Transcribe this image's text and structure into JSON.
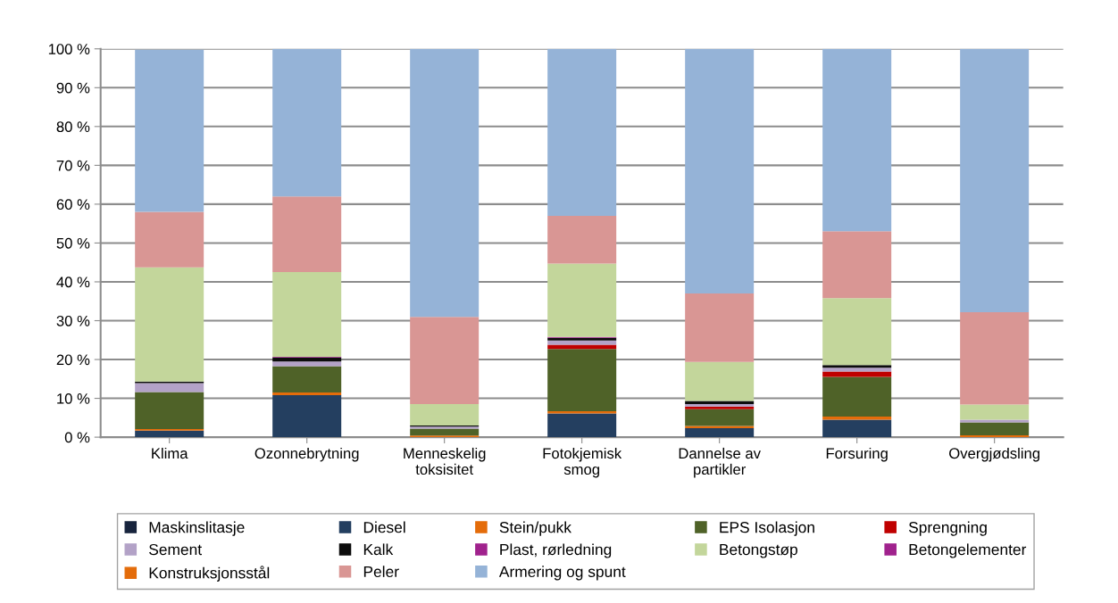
{
  "chart_data": {
    "type": "bar",
    "stacked": true,
    "categories": [
      "Klima",
      "Ozonnebrytning",
      "Menneskelig\ntoksisitet",
      "Fotokjemisk\nsmog",
      "Dannelse av\npartikler",
      "Forsuring",
      "Overgjødsling"
    ],
    "series": [
      {
        "name": "Maskinslitasje",
        "color": "#17243d",
        "values": [
          null,
          0,
          0,
          0,
          0,
          0,
          0
        ]
      },
      {
        "name": "Diesel",
        "color": "#243f60",
        "values": [
          1.7,
          10.8,
          0,
          6.1,
          2.3,
          4.5,
          0
        ]
      },
      {
        "name": "Stein/pukk",
        "color": "#e46c0a",
        "values": [
          0.4,
          0.7,
          0.4,
          0.6,
          0.6,
          0.8,
          0.5
        ]
      },
      {
        "name": "EPS Isolasjon",
        "color": "#4f6228",
        "values": [
          9.5,
          6.8,
          1.8,
          16.0,
          4.3,
          10.2,
          3.3
        ]
      },
      {
        "name": "Sprengning",
        "color": "#c00000",
        "values": [
          0,
          0,
          0,
          1.1,
          0.7,
          1.4,
          0
        ]
      },
      {
        "name": "Sement",
        "color": "#b3a2c7",
        "values": [
          2.3,
          1.2,
          0.5,
          1.1,
          0.6,
          1.0,
          0.7
        ]
      },
      {
        "name": "Kalk",
        "color": "#0d0d0d",
        "values": [
          0.4,
          1.0,
          0.3,
          0.7,
          0.8,
          0.7,
          0
        ]
      },
      {
        "name": "Plast, rørledning",
        "color": "#a0228d",
        "values": [
          null,
          0.2,
          0,
          0.2,
          0,
          0,
          0
        ]
      },
      {
        "name": "Betongstøp",
        "color": "#c3d69b",
        "values": [
          29.4,
          21.8,
          5.5,
          18.9,
          10.1,
          17.2,
          3.9
        ]
      },
      {
        "name": "Betongelementer",
        "color": "#a0228d",
        "values": [
          0,
          0,
          0,
          0,
          0,
          0,
          0
        ]
      },
      {
        "name": "Konstruksjonsstål",
        "color": "#e46c0a",
        "values": [
          0,
          0,
          0,
          0,
          0,
          0,
          0
        ]
      },
      {
        "name": "Peler",
        "color": "#d99694",
        "values": [
          14.3,
          19.5,
          22.5,
          12.3,
          17.6,
          17.2,
          23.8
        ]
      },
      {
        "name": "Armering og spunt",
        "color": "#95b3d7",
        "values": [
          41.8,
          38.0,
          69.0,
          43.0,
          63.0,
          47.0,
          67.8
        ]
      }
    ],
    "ylim": [
      0,
      100
    ],
    "yticks": [
      {
        "value": 0,
        "label": "0 %"
      },
      {
        "value": 10,
        "label": "10 %"
      },
      {
        "value": 20,
        "label": "20 %"
      },
      {
        "value": 30,
        "label": "30 %"
      },
      {
        "value": 40,
        "label": "40 %"
      },
      {
        "value": 50,
        "label": "50 %"
      },
      {
        "value": 60,
        "label": "60 %"
      },
      {
        "value": 70,
        "label": "70 %"
      },
      {
        "value": 80,
        "label": "80 %"
      },
      {
        "value": 90,
        "label": "90 %"
      },
      {
        "value": 100,
        "label": "100 %"
      }
    ],
    "grid": "y",
    "legend": "bottom"
  }
}
